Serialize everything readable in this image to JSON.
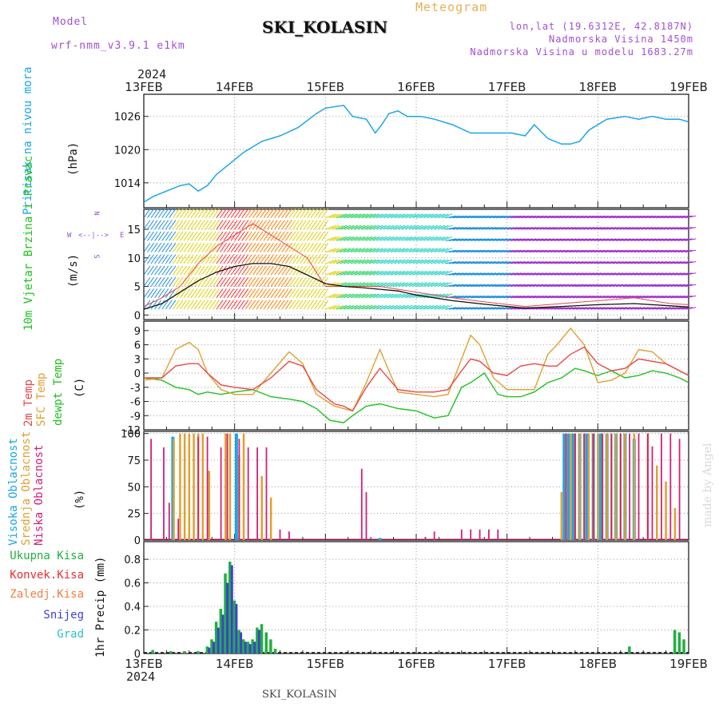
{
  "header": {
    "model_label": "Model",
    "model_name": "wrf-nmm_v3.9.1 e1km",
    "title": "SKI_KOLASIN",
    "meteogram_label": "Meteogram",
    "lonlat": "lon,lat (19.6312E, 42.8187N)",
    "altitude": "Nadmorska Visina 1450m",
    "model_altitude": "Nadmorska Visina u modelu 1683.27m",
    "footer_station": "SKI_KOLASIN",
    "year_top": "2024",
    "year_bottom": "2024",
    "signature": "made by Angel"
  },
  "colors": {
    "pressure": "#1aa6e8",
    "temp2m": "#e84848",
    "sfctemp": "#e0a030",
    "dewpt": "#20c020",
    "cloud_high": "#1aa6e8",
    "cloud_mid": "#e0a030",
    "cloud_low": "#d0207a",
    "precip_total": "#20b040",
    "precip_conv": "#e83030",
    "precip_frozen": "#f08040",
    "snow": "#4040d0",
    "hail": "#30c0c0",
    "title_purple": "#a050d0",
    "title_gold": "#e8b050"
  },
  "chart_data": [
    {
      "type": "line",
      "panel": "pressure",
      "ylabel": "Pritisak na nivou mora",
      "unit": "(hPa)",
      "x_ticks": [
        "13FEB",
        "14FEB",
        "15FEB",
        "16FEB",
        "17FEB",
        "18FEB",
        "19FEB"
      ],
      "yticks": [
        1014,
        1020,
        1026
      ],
      "ylim": [
        1009.5,
        1030
      ],
      "grid": true,
      "series": [
        {
          "values_x": [
            0,
            0.1,
            0.25,
            0.4,
            0.5,
            0.6,
            0.7,
            0.8,
            0.95,
            1.1,
            1.3,
            1.5,
            1.7,
            1.9,
            2.0,
            2.2,
            2.3,
            2.45,
            2.55,
            2.62,
            2.7,
            2.8,
            2.9,
            3.05,
            3.2,
            3.4,
            3.6,
            3.8,
            3.95,
            4.05,
            4.2,
            4.3,
            4.45,
            4.6,
            4.7,
            4.8,
            4.9,
            5.1,
            5.3,
            5.45,
            5.6,
            5.75,
            5.9,
            6.0
          ],
          "values": [
            1010.5,
            1011.5,
            1012.5,
            1013.5,
            1013.8,
            1012.5,
            1013.5,
            1015.5,
            1017.5,
            1019.5,
            1021.5,
            1022.5,
            1024,
            1026.5,
            1027.5,
            1028,
            1026,
            1025.5,
            1023,
            1024.5,
            1026.5,
            1027,
            1026,
            1026,
            1025.5,
            1024.5,
            1023,
            1023,
            1023,
            1023,
            1022.5,
            1024.5,
            1022,
            1021,
            1021,
            1021.5,
            1023.5,
            1025.5,
            1026,
            1025.5,
            1026,
            1025.5,
            1025.5,
            1025
          ]
        }
      ]
    },
    {
      "type": "line",
      "panel": "wind",
      "ylabel": "10m Vjetar Brzina i Pravac",
      "unit": "(m/s)",
      "compass": [
        "N",
        "W",
        "E",
        "S"
      ],
      "yticks": [
        0,
        5,
        10,
        15
      ],
      "ylim": [
        -0.8,
        18.5
      ],
      "grid": true,
      "series": [
        {
          "name": "speed",
          "values_x": [
            0,
            0.2,
            0.4,
            0.6,
            0.8,
            1.0,
            1.2,
            1.4,
            1.6,
            1.8,
            2.0,
            2.2,
            2.4,
            2.6,
            2.8,
            3.0,
            3.4,
            3.8,
            4.2,
            4.6,
            5.0,
            5.4,
            5.8,
            6.0
          ],
          "values": [
            1,
            2,
            4,
            6,
            7.5,
            8.5,
            9,
            9,
            8.5,
            7,
            5.5,
            5,
            4.8,
            4.5,
            4.2,
            3.5,
            2.5,
            1.8,
            1.2,
            1.5,
            1.8,
            2,
            1.6,
            1.4
          ]
        },
        {
          "name": "gust",
          "values_x": [
            0,
            0.2,
            0.4,
            0.6,
            0.8,
            1.0,
            1.2,
            1.4,
            1.6,
            1.8,
            2.0,
            2.2,
            2.4,
            2.6,
            2.8,
            3.0,
            3.4,
            3.8,
            4.2,
            4.6,
            5.0,
            5.4,
            5.8,
            6.0
          ],
          "values": [
            1.5,
            3,
            5,
            9,
            12,
            14,
            16,
            14,
            12,
            10,
            5,
            5,
            5,
            5,
            4.5,
            4,
            3,
            2.2,
            1.5,
            2,
            2.5,
            3,
            2,
            1.8
          ]
        }
      ]
    },
    {
      "type": "line",
      "panel": "temperature",
      "ylabel_1": "2m Temp",
      "ylabel_2": "SFC Temp",
      "ylabel_3": "dewpt Temp",
      "unit": "(C)",
      "yticks": [
        -12,
        -9,
        -6,
        -3,
        0,
        3,
        6,
        9
      ],
      "ylim": [
        -12,
        11
      ],
      "grid": true,
      "series": [
        {
          "name": "2m Temp",
          "values_x": [
            0,
            0.2,
            0.35,
            0.5,
            0.6,
            0.7,
            0.85,
            1.0,
            1.2,
            1.4,
            1.6,
            1.75,
            1.9,
            2.1,
            2.2,
            2.3,
            2.45,
            2.6,
            2.8,
            3.0,
            3.2,
            3.35,
            3.5,
            3.6,
            3.7,
            3.85,
            4.0,
            4.15,
            4.3,
            4.45,
            4.55,
            4.7,
            4.85,
            5.0,
            5.15,
            5.3,
            5.45,
            5.6,
            5.75,
            5.9,
            6.0
          ],
          "values": [
            -1,
            -1,
            1.5,
            2,
            2,
            0,
            -2.5,
            -3,
            -3.5,
            -1,
            2.5,
            1.5,
            -3.5,
            -6.5,
            -7,
            -8,
            -3,
            1,
            -3.5,
            -4,
            -4,
            -3.5,
            0.5,
            3,
            2.5,
            0,
            -0.5,
            1.5,
            2,
            1.5,
            1.5,
            4,
            5.5,
            2,
            0.5,
            1,
            3,
            2.5,
            2,
            0.5,
            -0.5
          ]
        },
        {
          "name": "SFC Temp",
          "values_x": [
            0,
            0.2,
            0.35,
            0.5,
            0.6,
            0.7,
            0.85,
            1.0,
            1.2,
            1.4,
            1.6,
            1.75,
            1.9,
            2.1,
            2.2,
            2.3,
            2.45,
            2.6,
            2.8,
            3.0,
            3.2,
            3.35,
            3.5,
            3.6,
            3.7,
            3.85,
            4.0,
            4.15,
            4.3,
            4.45,
            4.55,
            4.7,
            4.85,
            5.0,
            5.15,
            5.3,
            5.45,
            5.6,
            5.75,
            5.9,
            6.0
          ],
          "values": [
            -1.5,
            -1,
            5,
            6.5,
            5,
            0,
            -3.5,
            -4.5,
            -4.5,
            0,
            4.5,
            2,
            -4.5,
            -7,
            -7.5,
            -8,
            -2,
            5,
            -4,
            -4.5,
            -5,
            -4.5,
            3,
            8,
            6,
            -1,
            -3.5,
            -3.5,
            -3.5,
            4,
            6,
            9.5,
            6,
            -2,
            -1.5,
            0,
            5,
            4.5,
            2,
            0.5,
            -0.5
          ]
        },
        {
          "name": "dewpt Temp",
          "values_x": [
            0,
            0.2,
            0.35,
            0.5,
            0.6,
            0.7,
            0.85,
            1.0,
            1.2,
            1.4,
            1.6,
            1.75,
            1.9,
            2.05,
            2.2,
            2.3,
            2.45,
            2.6,
            2.8,
            3.0,
            3.2,
            3.35,
            3.5,
            3.6,
            3.75,
            3.9,
            4.0,
            4.15,
            4.3,
            4.45,
            4.6,
            4.75,
            4.85,
            5.0,
            5.15,
            5.3,
            5.45,
            5.6,
            5.75,
            5.9,
            6.0
          ],
          "values": [
            -1,
            -1.5,
            -3,
            -3.5,
            -4.5,
            -4,
            -4.5,
            -4,
            -3.5,
            -5,
            -5.5,
            -6,
            -7.5,
            -10,
            -10.5,
            -9,
            -7,
            -6.5,
            -7.5,
            -8,
            -9.5,
            -9,
            -3,
            -2,
            0,
            -4.5,
            -5,
            -5,
            -4,
            -2,
            -1,
            1,
            0.5,
            -0.5,
            0.5,
            -1,
            -0.5,
            0.5,
            0,
            -1,
            -2
          ]
        }
      ]
    },
    {
      "type": "bar",
      "panel": "clouds",
      "ylabel_1": "Visoka Oblacnost",
      "ylabel_2": "Srednja Oblacnost",
      "ylabel_3": "Niska Oblacnost",
      "unit": "(%)",
      "yticks": [
        0,
        25,
        50,
        75,
        100
      ],
      "ylim": [
        0,
        102
      ],
      "grid": true,
      "series": [
        {
          "name": "Visoka Oblacnost",
          "x": [
            0.32,
            1.02,
            2.6,
            4.63,
            4.68,
            4.73,
            4.8,
            4.88,
            4.95,
            5.03,
            5.1,
            5.2,
            5.3,
            5.4
          ],
          "values": [
            97,
            100,
            2,
            100,
            100,
            100,
            100,
            100,
            100,
            100,
            100,
            100,
            100,
            95
          ]
        },
        {
          "name": "Srednja Oblacnost",
          "x": [
            0.33,
            0.4,
            0.45,
            0.5,
            0.55,
            0.6,
            0.65,
            0.72,
            0.9,
            0.95,
            1.05,
            1.1,
            1.3,
            1.4,
            4.6,
            4.65,
            4.7,
            4.75,
            4.8,
            4.85,
            4.9,
            4.95,
            5.0,
            5.05,
            5.1,
            5.15,
            5.2,
            5.25,
            5.3,
            5.4,
            5.55,
            5.65,
            5.75,
            5.85
          ],
          "values": [
            95,
            100,
            100,
            100,
            100,
            100,
            100,
            65,
            100,
            100,
            80,
            100,
            60,
            40,
            45,
            100,
            100,
            100,
            100,
            100,
            100,
            100,
            100,
            100,
            100,
            100,
            100,
            100,
            100,
            100,
            100,
            70,
            55,
            30
          ]
        },
        {
          "name": "Niska Oblacnost",
          "x": [
            0.08,
            0.22,
            0.28,
            0.38,
            0.6,
            0.7,
            0.85,
            0.92,
            1.05,
            1.15,
            1.25,
            1.35,
            1.5,
            1.6,
            2.4,
            2.45,
            3.1,
            3.2,
            3.5,
            3.6,
            3.7,
            3.8,
            3.9,
            4.65,
            4.75,
            4.85,
            4.95,
            5.05,
            5.15,
            5.25,
            5.35,
            5.45,
            5.55,
            5.6,
            5.7,
            5.8,
            5.9
          ],
          "values": [
            95,
            87,
            35,
            20,
            97,
            97,
            87,
            100,
            95,
            87,
            87,
            87,
            10,
            8,
            67,
            45,
            3,
            8,
            10,
            10,
            10,
            10,
            10,
            100,
            100,
            100,
            100,
            100,
            100,
            100,
            100,
            100,
            100,
            88,
            100,
            100,
            95
          ]
        }
      ]
    },
    {
      "type": "bar",
      "panel": "precipitation",
      "legend": [
        "Ukupna Kisa",
        "Konvek.Kisa",
        "Zaledj.Kisa",
        "Snijeg",
        "Grad"
      ],
      "ylabel": "1hr Precip (mm)",
      "yticks": [
        0,
        0.2,
        0.4,
        0.6,
        0.8
      ],
      "ylim": [
        0,
        0.95
      ],
      "grid": true,
      "series": [
        {
          "name": "Ukupna Kisa",
          "x": [
            0.1,
            0.3,
            0.45,
            0.6,
            0.7,
            0.75,
            0.8,
            0.85,
            0.9,
            0.95,
            1.0,
            1.05,
            1.1,
            1.15,
            1.2,
            1.25,
            1.3,
            1.35,
            1.4,
            1.45,
            5.35,
            5.85,
            5.9,
            5.95
          ],
          "values": [
            0.03,
            0.02,
            0.02,
            0.02,
            0.06,
            0.12,
            0.27,
            0.38,
            0.68,
            0.78,
            0.45,
            0.2,
            0.12,
            0.1,
            0.12,
            0.22,
            0.25,
            0.18,
            0.12,
            0.04,
            0.06,
            0.2,
            0.18,
            0.12
          ]
        },
        {
          "name": "Snijeg",
          "x": [
            0.72,
            0.77,
            0.82,
            0.87,
            0.92,
            0.97,
            1.02,
            1.07,
            1.12,
            1.17,
            1.22,
            1.27
          ],
          "values": [
            0.05,
            0.1,
            0.22,
            0.33,
            0.6,
            0.75,
            0.42,
            0.18,
            0.1,
            0.08,
            0.1,
            0.2
          ]
        }
      ]
    }
  ]
}
